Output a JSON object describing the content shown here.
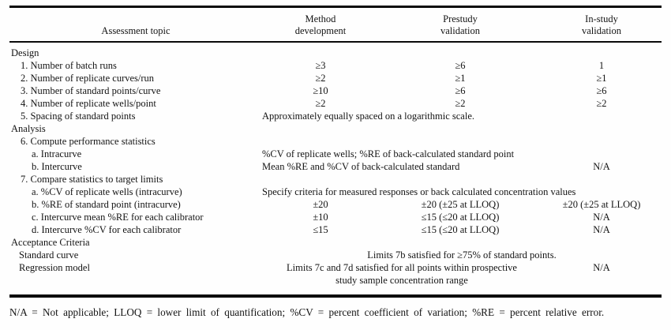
{
  "header": {
    "assessment": "Assessment topic",
    "method": {
      "l1": "Method",
      "l2": "development"
    },
    "prestudy": {
      "l1": "Prestudy",
      "l2": "validation"
    },
    "instudy": {
      "l1": "In-study",
      "l2": "validation"
    }
  },
  "rows": [
    {
      "topic": "Design"
    },
    {
      "topic": "1. Number of batch runs",
      "c2": "≥3",
      "c3": "≥6",
      "c4": "1"
    },
    {
      "topic": "2. Number of replicate curves/run",
      "c2": "≥2",
      "c3": "≥1",
      "c4": "≥1"
    },
    {
      "topic": "3. Number of standard points/curve",
      "c2": "≥10",
      "c3": "≥6",
      "c4": "≥6"
    },
    {
      "topic": "4. Number of replicate wells/point",
      "c2": "≥2",
      "c3": "≥2",
      "c4": "≥2"
    },
    {
      "topic": "5. Spacing of standard points",
      "span": "Approximately equally spaced on a logarithmic scale."
    },
    {
      "topic": "Analysis"
    },
    {
      "topic": "6. Compute performance statistics"
    },
    {
      "topic": "a. Intracurve",
      "span": "%CV of replicate wells; %RE of back-calculated standard point"
    },
    {
      "topic": "b. Intercurve",
      "span": "Mean %RE and %CV of back-calculated standard",
      "c4": "N/A"
    },
    {
      "topic": "7. Compare statistics to target limits"
    },
    {
      "topic": "a. %CV of replicate wells (intracurve)",
      "span": "Specify criteria for measured responses or back calculated concentration values"
    },
    {
      "topic": "b. %RE of standard point (intracurve)",
      "c2": "±20",
      "c3": "±20 (±25 at LLOQ)",
      "c4": "±20 (±25 at LLOQ)"
    },
    {
      "topic": "c. Intercurve mean %RE for each calibrator",
      "c2": "±10",
      "c3": "≤15 (≤20 at LLOQ)",
      "c4": "N/A"
    },
    {
      "topic": "d. Intercurve %CV for each calibrator",
      "c2": "≤15",
      "c3": "≤15 (≤20 at LLOQ)",
      "c4": "N/A"
    },
    {
      "topic": "Acceptance Criteria"
    },
    {
      "topic": "Standard curve",
      "span": "Limits 7b satisfied for ≥75% of standard points."
    },
    {
      "topic": "Regression model",
      "span1": "Limits 7c and 7d satisfied for all points within prospective",
      "span2": "study sample concentration range",
      "c4": "N/A"
    }
  ],
  "footnote": "N/A = Not applicable; LLOQ = lower limit of quantification; %CV = percent coefficient of variation; %RE = percent relative error."
}
